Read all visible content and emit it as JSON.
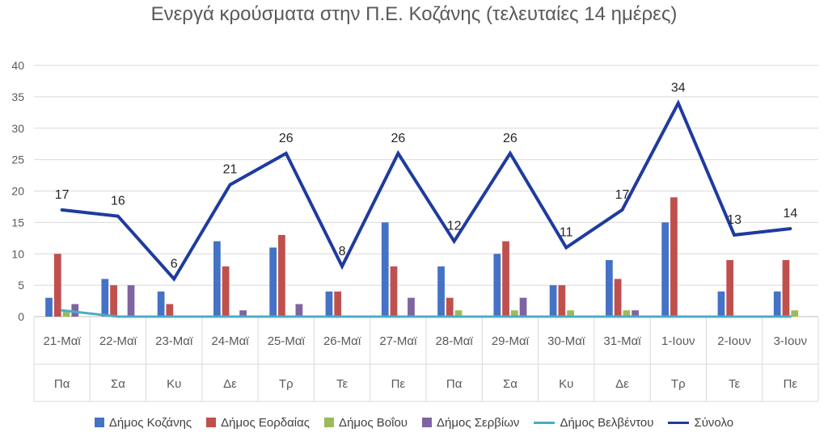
{
  "chart_data": {
    "type": "bar",
    "title": "Ενεργά κρούσματα στην Π.Ε. Κοζάνης (τελευταίες 14 ημέρες)",
    "categories": [
      "21-Μαϊ",
      "22-Μαϊ",
      "23-Μαϊ",
      "24-Μαϊ",
      "25-Μαϊ",
      "26-Μαϊ",
      "27-Μαϊ",
      "28-Μαϊ",
      "29-Μαϊ",
      "30-Μαϊ",
      "31-Μαϊ",
      "1-Ιουν",
      "2-Ιουν",
      "3-Ιουν"
    ],
    "weekdays": [
      "Πα",
      "Σα",
      "Κυ",
      "Δε",
      "Τρ",
      "Τε",
      "Πε",
      "Πα",
      "Σα",
      "Κυ",
      "Δε",
      "Τρ",
      "Τε",
      "Πε"
    ],
    "ylim": [
      0,
      40
    ],
    "yticks": [
      0,
      5,
      10,
      15,
      20,
      25,
      30,
      35,
      40
    ],
    "grid": true,
    "legend_position": "bottom",
    "series": [
      {
        "name": "Δήμος Κοζάνης",
        "kind": "bar",
        "color": "#4472c4",
        "values": [
          3,
          6,
          4,
          12,
          11,
          4,
          15,
          8,
          10,
          5,
          9,
          15,
          4,
          4
        ]
      },
      {
        "name": "Δήμος Εορδαίας",
        "kind": "bar",
        "color": "#c0504d",
        "values": [
          10,
          5,
          2,
          8,
          13,
          4,
          8,
          3,
          12,
          5,
          6,
          19,
          9,
          9
        ]
      },
      {
        "name": "Δήμος Βοΐου",
        "kind": "bar",
        "color": "#9bbb59",
        "values": [
          1,
          0,
          0,
          0,
          0,
          0,
          0,
          1,
          1,
          1,
          1,
          0,
          0,
          1
        ]
      },
      {
        "name": "Δήμος Σερβίων",
        "kind": "bar",
        "color": "#8064a2",
        "values": [
          2,
          5,
          0,
          1,
          2,
          0,
          3,
          0,
          3,
          0,
          1,
          0,
          0,
          0
        ]
      },
      {
        "name": "Δήμος Βελβέντου",
        "kind": "line",
        "color": "#4bacc6",
        "values": [
          1,
          0,
          0,
          0,
          0,
          0,
          0,
          0,
          0,
          0,
          0,
          0,
          0,
          0
        ]
      },
      {
        "name": "Σύνολο",
        "kind": "line",
        "color": "#1f3b9e",
        "values": [
          17,
          16,
          6,
          21,
          26,
          8,
          26,
          12,
          26,
          11,
          17,
          34,
          13,
          14
        ],
        "data_labels": true
      }
    ]
  }
}
